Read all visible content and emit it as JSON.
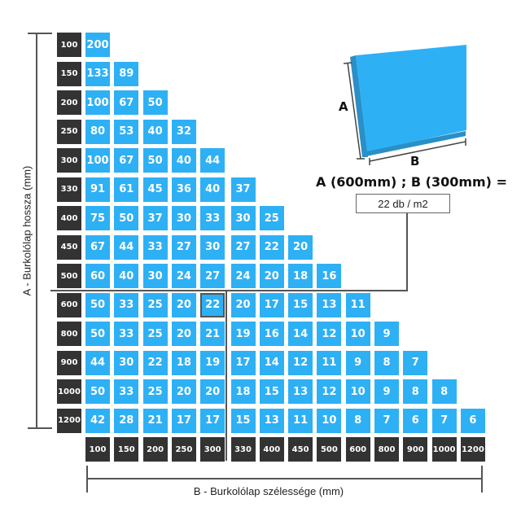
{
  "axis_a_label": "A - Burkolólap hossza (mm)",
  "axis_b_label": "B - Burkolólap szélessége (mm)",
  "tile": {
    "label_a": "A",
    "label_b": "B",
    "color": "#2eb0f5"
  },
  "formula": "A (600mm) ; B (300mm) =",
  "result": "22 db / m2",
  "highlight": {
    "row": "600",
    "col": "300"
  },
  "columns": [
    "100",
    "150",
    "200",
    "250",
    "300",
    "330",
    "400",
    "450",
    "500",
    "600",
    "800",
    "900",
    "1000",
    "1200"
  ],
  "rows": [
    {
      "label": "100",
      "values": [
        "200"
      ]
    },
    {
      "label": "150",
      "values": [
        "133",
        "89"
      ]
    },
    {
      "label": "200",
      "values": [
        "100",
        "67",
        "50"
      ]
    },
    {
      "label": "250",
      "values": [
        "80",
        "53",
        "40",
        "32"
      ]
    },
    {
      "label": "300",
      "values": [
        "100",
        "67",
        "50",
        "40",
        "44"
      ]
    },
    {
      "label": "330",
      "values": [
        "91",
        "61",
        "45",
        "36",
        "40",
        "37"
      ]
    },
    {
      "label": "400",
      "values": [
        "75",
        "50",
        "37",
        "30",
        "33",
        "30",
        "25"
      ]
    },
    {
      "label": "450",
      "values": [
        "67",
        "44",
        "33",
        "27",
        "30",
        "27",
        "22",
        "20"
      ]
    },
    {
      "label": "500",
      "values": [
        "60",
        "40",
        "30",
        "24",
        "27",
        "24",
        "20",
        "18",
        "16"
      ]
    },
    {
      "label": "600",
      "values": [
        "50",
        "33",
        "25",
        "20",
        "22",
        "20",
        "17",
        "15",
        "13",
        "11"
      ]
    },
    {
      "label": "800",
      "values": [
        "50",
        "33",
        "25",
        "20",
        "21",
        "19",
        "16",
        "14",
        "12",
        "10",
        "9"
      ]
    },
    {
      "label": "900",
      "values": [
        "44",
        "30",
        "22",
        "18",
        "19",
        "17",
        "14",
        "12",
        "11",
        "9",
        "8",
        "7"
      ]
    },
    {
      "label": "1000",
      "values": [
        "50",
        "33",
        "25",
        "20",
        "20",
        "18",
        "15",
        "13",
        "12",
        "10",
        "9",
        "8",
        "8"
      ]
    },
    {
      "label": "1200",
      "values": [
        "42",
        "28",
        "21",
        "17",
        "17",
        "15",
        "13",
        "11",
        "10",
        "8",
        "7",
        "6",
        "7",
        "6"
      ]
    }
  ]
}
